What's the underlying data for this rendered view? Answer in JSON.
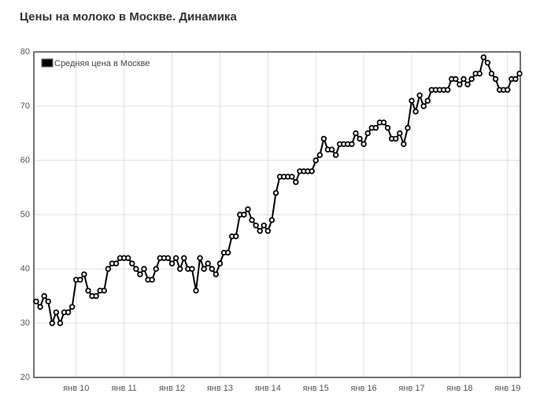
{
  "chart_data": {
    "type": "line",
    "title": "Цены на молоко в Москве. Динамика",
    "categories": [
      null,
      null,
      null,
      null,
      null,
      null,
      null,
      null,
      null,
      null,
      "янв 10",
      null,
      null,
      null,
      null,
      null,
      null,
      null,
      null,
      null,
      null,
      null,
      "янв 11",
      null,
      null,
      null,
      null,
      null,
      null,
      null,
      null,
      null,
      null,
      null,
      "янв 12",
      null,
      null,
      null,
      null,
      null,
      null,
      null,
      null,
      null,
      null,
      null,
      "янв 13",
      null,
      null,
      null,
      null,
      null,
      null,
      null,
      null,
      null,
      null,
      null,
      "янв 14",
      null,
      null,
      null,
      null,
      null,
      null,
      null,
      null,
      null,
      null,
      null,
      "янв 15",
      null,
      null,
      null,
      null,
      null,
      null,
      null,
      null,
      null,
      null,
      null,
      "янв 16",
      null,
      null,
      null,
      null,
      null,
      null,
      null,
      null,
      null,
      null,
      null,
      "янв 17",
      null,
      null,
      null,
      null,
      null,
      null,
      null,
      null,
      null,
      null,
      null,
      "янв 18",
      null,
      null,
      null,
      null,
      null,
      null,
      null,
      null,
      null,
      null,
      null,
      "янв 19",
      null,
      null,
      null
    ],
    "series": [
      {
        "name": "Средняя цена в Москве",
        "color": "#000000",
        "values": [
          34,
          33,
          35,
          34,
          30,
          32,
          30,
          32,
          32,
          33,
          38,
          38,
          39,
          36,
          35,
          35,
          36,
          36,
          40,
          41,
          41,
          42,
          42,
          42,
          41,
          40,
          39,
          40,
          38,
          38,
          40,
          42,
          42,
          42,
          41,
          42,
          40,
          42,
          40,
          40,
          36,
          42,
          40,
          41,
          40,
          39,
          41,
          43,
          43,
          46,
          46,
          50,
          50,
          51,
          49,
          48,
          47,
          48,
          47,
          49,
          54,
          57,
          57,
          57,
          57,
          56,
          58,
          58,
          58,
          58,
          60,
          61,
          64,
          62,
          62,
          61,
          63,
          63,
          63,
          63,
          65,
          64,
          63,
          65,
          66,
          66,
          67,
          67,
          66,
          64,
          64,
          65,
          63,
          66,
          71,
          69,
          72,
          70,
          71,
          73,
          73,
          73,
          73,
          73,
          75,
          75,
          74,
          75,
          74,
          75,
          76,
          76,
          79,
          78,
          76,
          75,
          73,
          73,
          73,
          75,
          75,
          76
        ]
      }
    ],
    "ylim": [
      20,
      80
    ],
    "yticks": [
      20,
      30,
      40,
      50,
      60,
      70,
      80
    ],
    "grid": true,
    "legend": "top-left"
  }
}
